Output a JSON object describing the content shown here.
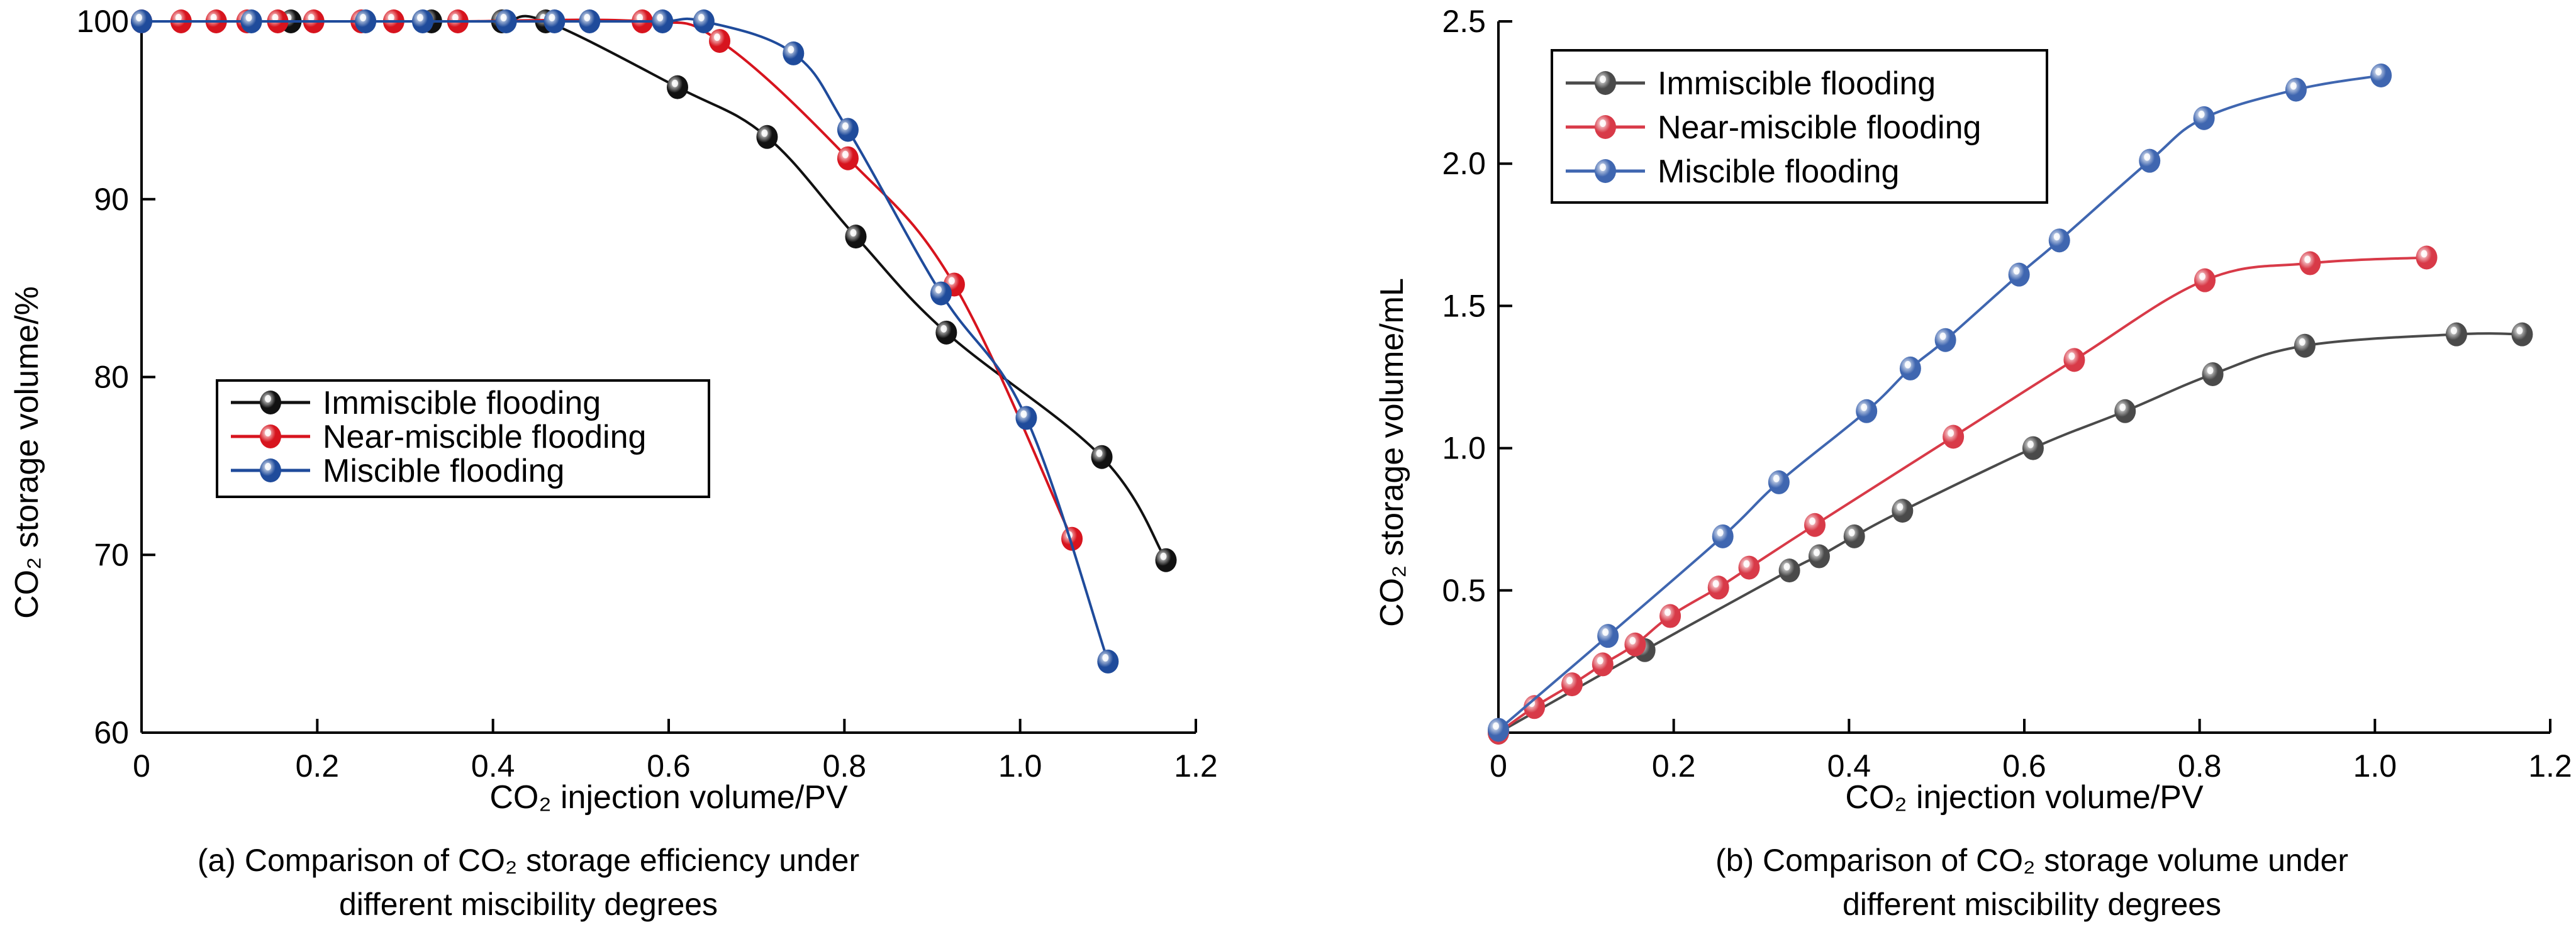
{
  "chart_data": [
    {
      "type": "line",
      "panel": "a",
      "caption_lines": [
        "(a) Comparison of CO₂ storage efficiency under",
        "different miscibility degrees"
      ],
      "xlabel": "CO₂ injection volume/PV",
      "ylabel": "CO₂ storage volume/%",
      "xlim": [
        0,
        1.2
      ],
      "ylim": [
        60,
        100
      ],
      "xticks": [
        0,
        0.2,
        0.4,
        0.6,
        0.8,
        1.0,
        1.2
      ],
      "xtick_labels": [
        "0",
        "0.2",
        "0.4",
        "0.6",
        "0.8",
        "1.0",
        "1.2"
      ],
      "yticks": [
        60,
        70,
        80,
        90,
        100
      ],
      "ytick_labels": [
        "60",
        "70",
        "80",
        "90",
        "100"
      ],
      "grid": false,
      "legend_position": "center-left",
      "series": [
        {
          "name": "Immiscible flooding",
          "color": "#111111",
          "x": [
            0.17,
            0.33,
            0.41,
            0.46,
            0.61,
            0.712,
            0.813,
            0.916,
            1.093,
            1.166
          ],
          "y": [
            100,
            100,
            100,
            100,
            96.3,
            93.5,
            87.9,
            82.5,
            75.5,
            69.7
          ]
        },
        {
          "name": "Near-miscible flooding",
          "color": "#d7141e",
          "x": [
            0,
            0.045,
            0.085,
            0.12,
            0.155,
            0.196,
            0.25,
            0.287,
            0.36,
            0.57,
            0.658,
            0.804,
            0.925,
            1.059
          ],
          "y": [
            100,
            100,
            100,
            100,
            100,
            100,
            100,
            100,
            100,
            100,
            98.9,
            92.3,
            85.2,
            70.9
          ]
        },
        {
          "name": "Miscible flooding",
          "color": "#1f4b9b",
          "x": [
            0,
            0.125,
            0.255,
            0.32,
            0.415,
            0.47,
            0.51,
            0.593,
            0.64,
            0.742,
            0.804,
            0.91,
            1.007,
            1.1
          ],
          "y": [
            100,
            100,
            100,
            100,
            100,
            100,
            100,
            100,
            100,
            98.2,
            93.9,
            84.7,
            77.7,
            64.0
          ]
        }
      ]
    },
    {
      "type": "line",
      "panel": "b",
      "caption_lines": [
        "(b) Comparison of CO₂ storage volume under",
        "different miscibility degrees"
      ],
      "xlabel": "CO₂ injection volume/PV",
      "ylabel": "CO₂ storage volume/mL",
      "xlim": [
        0,
        1.2
      ],
      "ylim": [
        0,
        2.5
      ],
      "xticks": [
        0,
        0.2,
        0.4,
        0.6,
        0.8,
        1.0,
        1.2
      ],
      "xtick_labels": [
        "0",
        "0.2",
        "0.4",
        "0.6",
        "0.8",
        "1.0",
        "1.2"
      ],
      "yticks": [
        0.5,
        1.0,
        1.5,
        2.0,
        2.5
      ],
      "ytick_labels": [
        "0.5",
        "1.0",
        "1.5",
        "2.0",
        "2.5"
      ],
      "grid": false,
      "legend_position": "top-left",
      "series": [
        {
          "name": "Immiscible flooding",
          "color": "#4a4a4a",
          "x": [
            0,
            0.167,
            0.332,
            0.366,
            0.406,
            0.461,
            0.61,
            0.715,
            0.815,
            0.92,
            1.093,
            1.168
          ],
          "y": [
            0,
            0.29,
            0.57,
            0.62,
            0.69,
            0.78,
            1.0,
            1.13,
            1.26,
            1.36,
            1.4,
            1.4
          ]
        },
        {
          "name": "Near-miscible flooding",
          "color": "#d83a48",
          "x": [
            0,
            0.041,
            0.084,
            0.119,
            0.156,
            0.196,
            0.251,
            0.286,
            0.361,
            0.519,
            0.657,
            0.806,
            0.926,
            1.059
          ],
          "y": [
            0,
            0.09,
            0.17,
            0.24,
            0.31,
            0.41,
            0.51,
            0.58,
            0.73,
            1.04,
            1.31,
            1.59,
            1.65,
            1.67
          ]
        },
        {
          "name": "Miscible flooding",
          "color": "#3f66b0",
          "x": [
            0,
            0.125,
            0.256,
            0.32,
            0.42,
            0.47,
            0.51,
            0.594,
            0.64,
            0.743,
            0.805,
            0.91,
            1.007
          ],
          "y": [
            0.01,
            0.34,
            0.69,
            0.88,
            1.13,
            1.28,
            1.38,
            1.61,
            1.73,
            2.01,
            2.16,
            2.26,
            2.31
          ]
        }
      ]
    }
  ]
}
